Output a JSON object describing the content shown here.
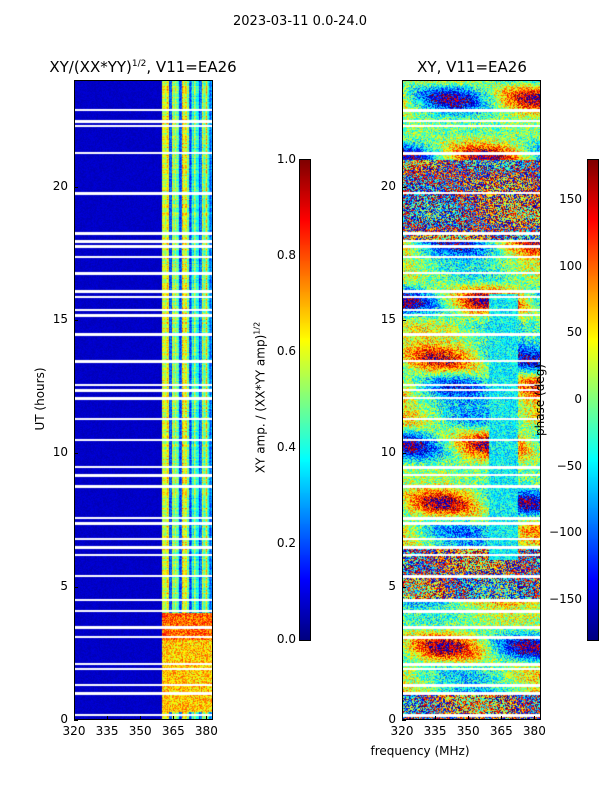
{
  "suptitle": "2023-03-11 0.0-24.0",
  "xlabel_shared": "frequency (MHz)",
  "chart_data": [
    {
      "type": "heatmap",
      "title_main": "XY/(XX*YY)",
      "title_exponent": "1/2",
      "title_suffix": ", V11=EA26",
      "xlabel": "",
      "ylabel": "UT (hours)",
      "xlim": [
        320,
        383
      ],
      "ylim": [
        0,
        24
      ],
      "xticks": [
        320,
        335,
        350,
        365,
        380
      ],
      "yticks": [
        0,
        5,
        10,
        15,
        20
      ],
      "colorbar": {
        "label_main": "XY amp. / (XX*YY amp)",
        "label_exponent": "1/2",
        "range": [
          0.0,
          1.0
        ],
        "ticks": [
          "0.0",
          "0.2",
          "0.4",
          "0.6",
          "0.8",
          "1.0"
        ],
        "tick_values": [
          0.0,
          0.2,
          0.4,
          0.6,
          0.8,
          1.0
        ],
        "colormap": "jet"
      },
      "description_values": {
        "background_value": 0.05,
        "active_band_mhz": [
          360,
          381
        ],
        "active_band_value_range": [
          0.3,
          0.6
        ],
        "high_value_period_ut": [
          3.0,
          4.0
        ],
        "high_value_level": 0.9
      },
      "blank_rows_ut": [
        0.2,
        1.0,
        1.3,
        1.9,
        2.1,
        3.1,
        3.5,
        4.1,
        4.5,
        5.4,
        6.2,
        6.5,
        6.8,
        7.4,
        7.6,
        8.8,
        9.2,
        9.5,
        10.5,
        11.3,
        12.1,
        12.4,
        12.6,
        13.5,
        14.5,
        15.2,
        15.4,
        15.9,
        16.1,
        16.8,
        17.4,
        17.8,
        18.0,
        18.3,
        19.8,
        21.3,
        22.3,
        22.5,
        22.9
      ]
    },
    {
      "type": "heatmap",
      "title_main": "XY, V11=EA26",
      "xlabel": "frequency (MHz)",
      "ylabel": "",
      "xlim": [
        320,
        383
      ],
      "ylim": [
        0,
        24
      ],
      "xticks": [
        320,
        335,
        350,
        365,
        380
      ],
      "yticks": [
        0,
        5,
        10,
        15,
        20
      ],
      "colorbar": {
        "label_main": "phase (deg)",
        "range": [
          -180,
          180
        ],
        "ticks": [
          "−150",
          "−100",
          "−50",
          "0",
          "50",
          "100",
          "150"
        ],
        "tick_values": [
          -150,
          -100,
          -50,
          0,
          50,
          100,
          150
        ],
        "colormap": "jet"
      },
      "blank_rows_ut": [
        0.2,
        1.0,
        1.3,
        1.9,
        2.1,
        3.1,
        3.5,
        4.1,
        4.5,
        5.4,
        6.2,
        6.5,
        6.8,
        7.4,
        7.6,
        8.8,
        9.2,
        9.5,
        10.5,
        11.3,
        12.1,
        12.4,
        12.6,
        13.5,
        14.5,
        15.2,
        15.4,
        15.9,
        16.1,
        16.8,
        17.4,
        17.8,
        18.0,
        18.3,
        19.8,
        21.3,
        22.3,
        22.5,
        22.9
      ]
    }
  ]
}
